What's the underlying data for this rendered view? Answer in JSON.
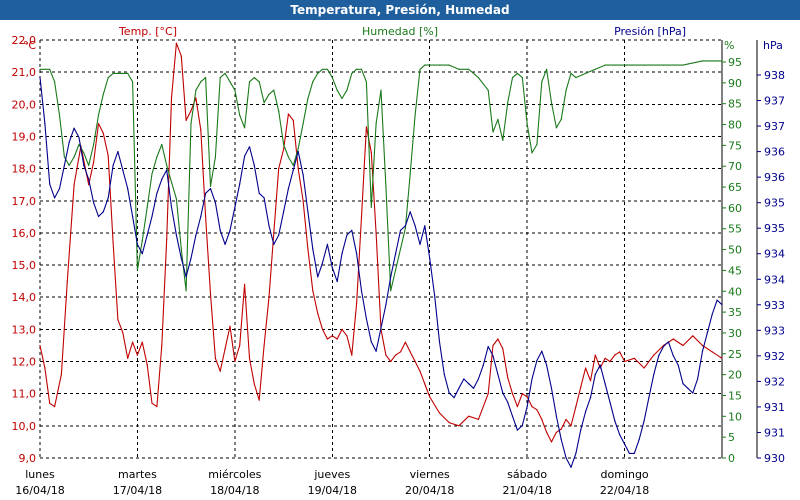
{
  "chart_data": {
    "type": "line",
    "title": "Temperatura, Presión, Humedad",
    "colors": {
      "title_bar": "#1f5f9e",
      "temp": "#c00000",
      "humidity": "#1a7a1a",
      "pressure": "#00008b",
      "grid": "#000000"
    },
    "axes": {
      "temp": {
        "label": "Temp. [°C]",
        "unit": "°C",
        "min": 9.0,
        "max": 22.0,
        "ticks": [
          "22,0",
          "21,0",
          "20,0",
          "19,0",
          "18,0",
          "17,0",
          "16,0",
          "15,0",
          "14,0",
          "13,0",
          "12,0",
          "11,0",
          "10,0",
          "9,0"
        ]
      },
      "humidity": {
        "label": "Humedad [%]",
        "unit": "%",
        "min": 0,
        "max": 100,
        "ticks": [
          "95",
          "90",
          "85",
          "80",
          "75",
          "70",
          "65",
          "60",
          "55",
          "50",
          "45",
          "40",
          "35",
          "30",
          "25",
          "20",
          "15",
          "10",
          "5",
          "0"
        ]
      },
      "pressure": {
        "label": "Presión [hPa]",
        "unit": "hPa",
        "min": 930,
        "max": 939,
        "ticks": [
          "938",
          "937",
          "937",
          "936",
          "936",
          "935",
          "935",
          "934",
          "934",
          "933",
          "933",
          "932",
          "932",
          "931",
          "931",
          "930"
        ]
      }
    },
    "x_range": [
      0,
      7
    ],
    "days": [
      {
        "name": "lunes",
        "date": "16/04/18"
      },
      {
        "name": "martes",
        "date": "17/04/18"
      },
      {
        "name": "miércoles",
        "date": "18/04/18"
      },
      {
        "name": "jueves",
        "date": "19/04/18"
      },
      {
        "name": "viernes",
        "date": "20/04/18"
      },
      {
        "name": "sábado",
        "date": "21/04/18"
      },
      {
        "name": "domingo",
        "date": "22/04/18"
      }
    ],
    "series": [
      {
        "name": "Temp. [°C]",
        "axis": "temp",
        "x": [
          0,
          0.05,
          0.1,
          0.15,
          0.22,
          0.28,
          0.35,
          0.42,
          0.5,
          0.55,
          0.6,
          0.65,
          0.7,
          0.75,
          0.8,
          0.85,
          0.9,
          0.95,
          1.0,
          1.05,
          1.1,
          1.15,
          1.2,
          1.25,
          1.3,
          1.35,
          1.4,
          1.45,
          1.5,
          1.55,
          1.6,
          1.65,
          1.7,
          1.75,
          1.8,
          1.85,
          1.9,
          1.95,
          2.0,
          2.05,
          2.1,
          2.15,
          2.2,
          2.25,
          2.3,
          2.35,
          2.4,
          2.45,
          2.5,
          2.55,
          2.6,
          2.65,
          2.7,
          2.75,
          2.8,
          2.85,
          2.9,
          2.95,
          3.0,
          3.05,
          3.1,
          3.15,
          3.2,
          3.25,
          3.3,
          3.35,
          3.4,
          3.45,
          3.5,
          3.55,
          3.6,
          3.65,
          3.7,
          3.75,
          3.8,
          3.85,
          3.9,
          3.95,
          4.0,
          4.1,
          4.2,
          4.3,
          4.4,
          4.5,
          4.6,
          4.65,
          4.7,
          4.75,
          4.8,
          4.85,
          4.9,
          4.95,
          5.0,
          5.05,
          5.1,
          5.15,
          5.2,
          5.25,
          5.3,
          5.35,
          5.4,
          5.45,
          5.5,
          5.55,
          5.6,
          5.65,
          5.7,
          5.75,
          5.8,
          5.85,
          5.9,
          5.95,
          6.0,
          6.1,
          6.2,
          6.3,
          6.4,
          6.5,
          6.6,
          6.7,
          6.8,
          6.9,
          7.0
        ],
        "y": [
          12.5,
          11.8,
          10.7,
          10.6,
          11.6,
          14.5,
          17.5,
          18.7,
          17.5,
          18.2,
          19.4,
          19.1,
          18.4,
          15.7,
          13.3,
          12.9,
          12.1,
          12.6,
          12.2,
          12.6,
          11.9,
          10.7,
          10.6,
          12.5,
          15.8,
          20.2,
          21.9,
          21.5,
          19.5,
          19.8,
          20.2,
          19.2,
          16.5,
          14.1,
          12.1,
          11.7,
          12.4,
          13.1,
          12.0,
          12.5,
          14.4,
          12.1,
          11.3,
          10.8,
          12.5,
          14.0,
          16.0,
          18.0,
          18.6,
          19.7,
          19.5,
          18.0,
          17.0,
          15.5,
          14.2,
          13.5,
          13.0,
          12.7,
          12.8,
          12.7,
          13.0,
          12.8,
          12.2,
          13.8,
          16.5,
          19.3,
          18.5,
          16.0,
          13.0,
          12.2,
          12.0,
          12.2,
          12.3,
          12.6,
          12.3,
          12.0,
          11.7,
          11.3,
          10.9,
          10.4,
          10.1,
          10.0,
          10.3,
          10.2,
          11.0,
          12.5,
          12.7,
          12.4,
          11.5,
          11.0,
          10.6,
          11.0,
          10.9,
          10.6,
          10.5,
          10.2,
          9.8,
          9.5,
          9.8,
          9.9,
          10.2,
          10.0,
          10.6,
          11.2,
          11.8,
          11.4,
          12.2,
          11.8,
          12.1,
          12.0,
          12.2,
          12.3,
          12.0,
          12.1,
          11.8,
          12.2,
          12.5,
          12.7,
          12.5,
          12.8,
          12.5,
          12.3,
          12.1
        ]
      },
      {
        "name": "Humedad [%]",
        "axis": "humidity",
        "x": [
          0,
          0.05,
          0.1,
          0.15,
          0.2,
          0.25,
          0.3,
          0.35,
          0.4,
          0.45,
          0.5,
          0.55,
          0.6,
          0.65,
          0.7,
          0.75,
          0.8,
          0.85,
          0.9,
          0.95,
          1.0,
          1.05,
          1.1,
          1.15,
          1.2,
          1.25,
          1.3,
          1.35,
          1.4,
          1.45,
          1.5,
          1.55,
          1.6,
          1.65,
          1.7,
          1.75,
          1.8,
          1.85,
          1.9,
          1.95,
          2.0,
          2.05,
          2.1,
          2.15,
          2.2,
          2.25,
          2.3,
          2.35,
          2.4,
          2.45,
          2.5,
          2.55,
          2.6,
          2.65,
          2.7,
          2.75,
          2.8,
          2.85,
          2.9,
          2.95,
          3.0,
          3.05,
          3.1,
          3.15,
          3.2,
          3.25,
          3.3,
          3.35,
          3.4,
          3.45,
          3.5,
          3.55,
          3.6,
          3.65,
          3.7,
          3.75,
          3.8,
          3.85,
          3.9,
          3.95,
          4.0,
          4.1,
          4.2,
          4.3,
          4.4,
          4.5,
          4.6,
          4.65,
          4.7,
          4.75,
          4.8,
          4.85,
          4.9,
          4.95,
          5.0,
          5.05,
          5.1,
          5.15,
          5.2,
          5.25,
          5.3,
          5.35,
          5.4,
          5.45,
          5.5,
          5.6,
          5.7,
          5.8,
          5.9,
          6.0,
          6.2,
          6.4,
          6.6,
          6.8,
          7.0
        ],
        "y": [
          93,
          93,
          93,
          90,
          82,
          72,
          70,
          72,
          75,
          73,
          70,
          75,
          82,
          87,
          91,
          92,
          92,
          92,
          92,
          90,
          45,
          52,
          60,
          68,
          72,
          75,
          70,
          66,
          62,
          50,
          40,
          80,
          88,
          90,
          91,
          65,
          72,
          91,
          92,
          90,
          88,
          82,
          79,
          90,
          91,
          90,
          85,
          87,
          88,
          83,
          75,
          72,
          70,
          74,
          80,
          86,
          90,
          92,
          93,
          93,
          91,
          88,
          86,
          88,
          92,
          93,
          93,
          90,
          60,
          80,
          88,
          65,
          40,
          45,
          50,
          55,
          68,
          82,
          93,
          94,
          94,
          94,
          94,
          93,
          93,
          91,
          88,
          78,
          81,
          76,
          85,
          91,
          92,
          91,
          80,
          73,
          75,
          90,
          93,
          85,
          79,
          81,
          88,
          92,
          91,
          92,
          93,
          94,
          94,
          94,
          94,
          94,
          94,
          95,
          95
        ]
      },
      {
        "name": "Presión [hPa]",
        "axis": "pressure",
        "x": [
          0,
          0.05,
          0.1,
          0.15,
          0.2,
          0.25,
          0.3,
          0.35,
          0.4,
          0.45,
          0.5,
          0.55,
          0.6,
          0.65,
          0.7,
          0.75,
          0.8,
          0.85,
          0.9,
          0.95,
          1.0,
          1.05,
          1.1,
          1.15,
          1.2,
          1.25,
          1.3,
          1.35,
          1.4,
          1.45,
          1.5,
          1.55,
          1.6,
          1.65,
          1.7,
          1.75,
          1.8,
          1.85,
          1.9,
          1.95,
          2.0,
          2.05,
          2.1,
          2.15,
          2.2,
          2.25,
          2.3,
          2.35,
          2.4,
          2.45,
          2.5,
          2.55,
          2.6,
          2.65,
          2.7,
          2.75,
          2.8,
          2.85,
          2.9,
          2.95,
          3.0,
          3.05,
          3.1,
          3.15,
          3.2,
          3.25,
          3.3,
          3.35,
          3.4,
          3.45,
          3.5,
          3.55,
          3.6,
          3.65,
          3.7,
          3.75,
          3.8,
          3.85,
          3.9,
          3.95,
          4.0,
          4.05,
          4.1,
          4.15,
          4.2,
          4.25,
          4.3,
          4.35,
          4.4,
          4.45,
          4.5,
          4.55,
          4.6,
          4.65,
          4.7,
          4.75,
          4.8,
          4.85,
          4.9,
          4.95,
          5.0,
          5.05,
          5.1,
          5.15,
          5.2,
          5.25,
          5.3,
          5.35,
          5.4,
          5.45,
          5.5,
          5.55,
          5.6,
          5.65,
          5.7,
          5.75,
          5.8,
          5.85,
          5.9,
          5.95,
          6.0,
          6.05,
          6.1,
          6.15,
          6.2,
          6.25,
          6.3,
          6.35,
          6.4,
          6.45,
          6.5,
          6.55,
          6.6,
          6.65,
          6.7,
          6.75,
          6.8,
          6.85,
          6.9,
          6.95,
          7.0
        ],
        "y": [
          938.2,
          937.2,
          935.9,
          935.6,
          935.8,
          936.3,
          936.8,
          937.1,
          936.9,
          936.3,
          936.0,
          935.5,
          935.2,
          935.3,
          935.6,
          936.3,
          936.6,
          936.2,
          935.8,
          935.2,
          934.6,
          934.4,
          934.8,
          935.2,
          935.7,
          936.0,
          936.2,
          935.4,
          934.8,
          934.3,
          933.9,
          934.3,
          934.8,
          935.2,
          935.7,
          935.8,
          935.5,
          934.9,
          934.6,
          934.9,
          935.4,
          935.9,
          936.5,
          936.7,
          936.3,
          935.7,
          935.6,
          935.0,
          934.6,
          934.8,
          935.3,
          935.8,
          936.2,
          936.6,
          936.1,
          935.3,
          934.5,
          933.9,
          934.2,
          934.6,
          934.1,
          933.8,
          934.4,
          934.8,
          934.9,
          934.4,
          933.6,
          933.0,
          932.5,
          932.3,
          932.8,
          933.3,
          933.9,
          934.4,
          934.9,
          935.0,
          935.3,
          935.0,
          934.6,
          935.0,
          934.3,
          933.5,
          932.5,
          931.8,
          931.4,
          931.3,
          931.5,
          931.7,
          931.6,
          931.5,
          931.7,
          932.0,
          932.4,
          932.2,
          931.8,
          931.4,
          931.2,
          930.9,
          930.6,
          930.7,
          931.1,
          931.7,
          932.1,
          932.3,
          932.0,
          931.5,
          930.9,
          930.4,
          930.0,
          929.8,
          930.1,
          930.6,
          931.0,
          931.3,
          931.8,
          932.0,
          931.6,
          931.2,
          930.8,
          930.5,
          930.3,
          930.1,
          930.1,
          930.4,
          930.8,
          931.3,
          931.8,
          932.2,
          932.4,
          932.5,
          932.2,
          932.0,
          931.6,
          931.5,
          931.4,
          931.7,
          932.3,
          932.7,
          933.1,
          933.4,
          933.3
        ]
      }
    ]
  }
}
